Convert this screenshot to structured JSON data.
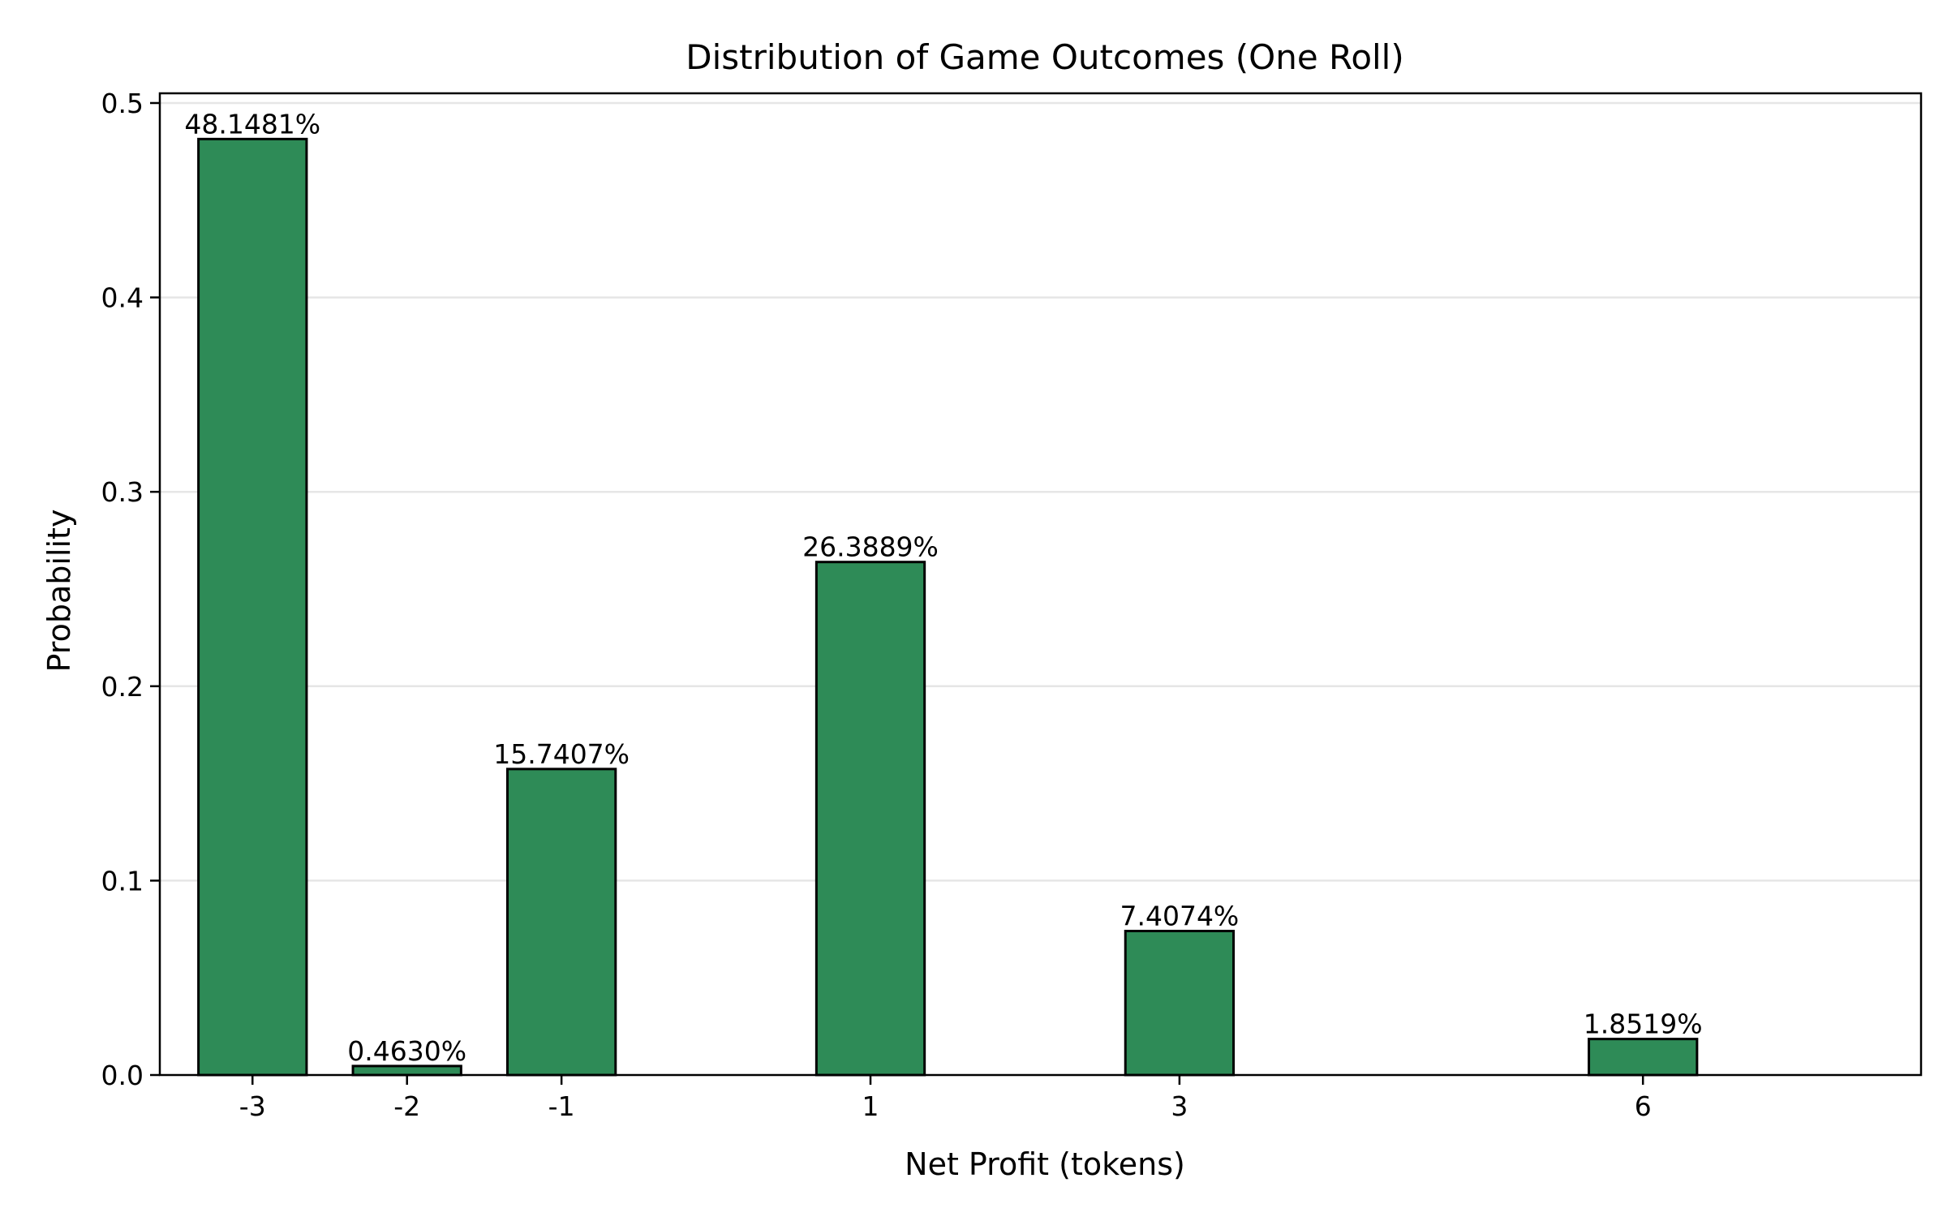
{
  "chart_data": {
    "type": "bar",
    "title": "Distribution of Game Outcomes (One Roll)",
    "xlabel": "Net Profit (tokens)",
    "ylabel": "Probability",
    "x": [
      -3,
      -2,
      -1,
      1,
      3,
      6
    ],
    "x_tick_labels": [
      "-3",
      "-2",
      "-1",
      "1",
      "3",
      "6"
    ],
    "values": [
      0.481481,
      0.00463,
      0.157407,
      0.263889,
      0.074074,
      0.018519
    ],
    "data_labels": [
      "48.1481%",
      "0.4630%",
      "15.7407%",
      "26.3889%",
      "7.4074%",
      "1.8519%"
    ],
    "xlim": [
      -3.6,
      7.8
    ],
    "ylim": [
      0,
      0.505
    ],
    "y_ticks": [
      0.0,
      0.1,
      0.2,
      0.3,
      0.4,
      0.5
    ],
    "y_tick_labels": [
      "0.0",
      "0.1",
      "0.2",
      "0.3",
      "0.4",
      "0.5"
    ],
    "bar_width": 0.7,
    "bar_color": "#2e8b57",
    "bar_edge_color": "#000000",
    "grid": "y-axis only",
    "legend": "none"
  }
}
